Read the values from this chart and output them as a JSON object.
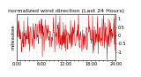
{
  "title": "normalized wind direction (Last 24 Hours)",
  "ylabel_left": "milwaukee",
  "y_tick_labels": [
    "1",
    "0.5",
    "0",
    "-0.5",
    "-1"
  ],
  "y_tick_values": [
    1.0,
    0.5,
    0.0,
    -0.5,
    -1.0
  ],
  "ylim": [
    -1.5,
    1.3
  ],
  "line_color": "#cc0000",
  "bg_color": "#ffffff",
  "grid_color": "#bbbbbb",
  "title_fontsize": 4.5,
  "tick_fontsize": 3.5,
  "ylabel_fontsize": 3.8,
  "seed": 42,
  "num_points": 288
}
